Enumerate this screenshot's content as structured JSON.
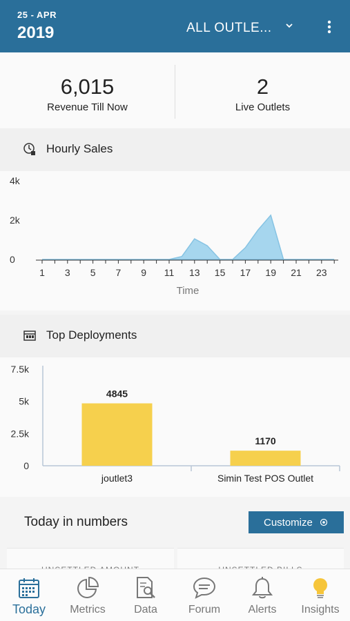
{
  "header": {
    "date_top": "25 - APR",
    "year": "2019",
    "outlet": "ALL OUTLE..."
  },
  "stats": {
    "revenue_value": "6,015",
    "revenue_label": "Revenue Till Now",
    "outlets_value": "2",
    "outlets_label": "Live Outlets"
  },
  "sections": {
    "hourly_sales": "Hourly Sales",
    "top_deployments": "Top Deployments"
  },
  "today": {
    "title": "Today in numbers",
    "customize_label": "Customize",
    "cards": [
      "UNSETTLED AMOUNT",
      "UNSETTLED BILLS"
    ]
  },
  "nav": {
    "items": [
      {
        "label": "Today",
        "icon": "calendar-icon"
      },
      {
        "label": "Metrics",
        "icon": "pie-chart-icon"
      },
      {
        "label": "Data",
        "icon": "document-search-icon"
      },
      {
        "label": "Forum",
        "icon": "chat-icon"
      },
      {
        "label": "Alerts",
        "icon": "bell-icon"
      },
      {
        "label": "Insights",
        "icon": "lightbulb-icon"
      }
    ]
  },
  "colors": {
    "primary": "#2a6f9a",
    "area_fill": "#a6d6ee",
    "area_stroke": "#86c3e3",
    "bar": "#f6d04d",
    "insights": "#f6c53a"
  },
  "chart_data": [
    {
      "type": "area",
      "xlabel": "Time",
      "ylabel": "",
      "x": [
        1,
        2,
        3,
        4,
        5,
        6,
        7,
        8,
        9,
        10,
        11,
        12,
        13,
        14,
        15,
        16,
        17,
        18,
        19,
        20,
        21,
        22,
        23,
        24
      ],
      "values": [
        0,
        0,
        0,
        0,
        0,
        0,
        0,
        0,
        0,
        0,
        0,
        150,
        1050,
        700,
        0,
        0,
        600,
        1500,
        2250,
        0,
        0,
        0,
        0,
        0
      ],
      "xticks": [
        "1",
        "3",
        "5",
        "7",
        "9",
        "11",
        "13",
        "15",
        "17",
        "19",
        "21",
        "23"
      ],
      "yticks": [
        "0",
        "2k",
        "4k"
      ],
      "ylim": [
        0,
        4000
      ],
      "grid": false
    },
    {
      "type": "bar",
      "categories": [
        "joutlet3",
        "Simin Test POS Outlet"
      ],
      "values": [
        4845,
        1170
      ],
      "value_labels": [
        "4845",
        "1170"
      ],
      "yticks": [
        "0",
        "2.5k",
        "5k",
        "7.5k"
      ],
      "ylim": [
        0,
        7500
      ],
      "grid": false
    }
  ]
}
